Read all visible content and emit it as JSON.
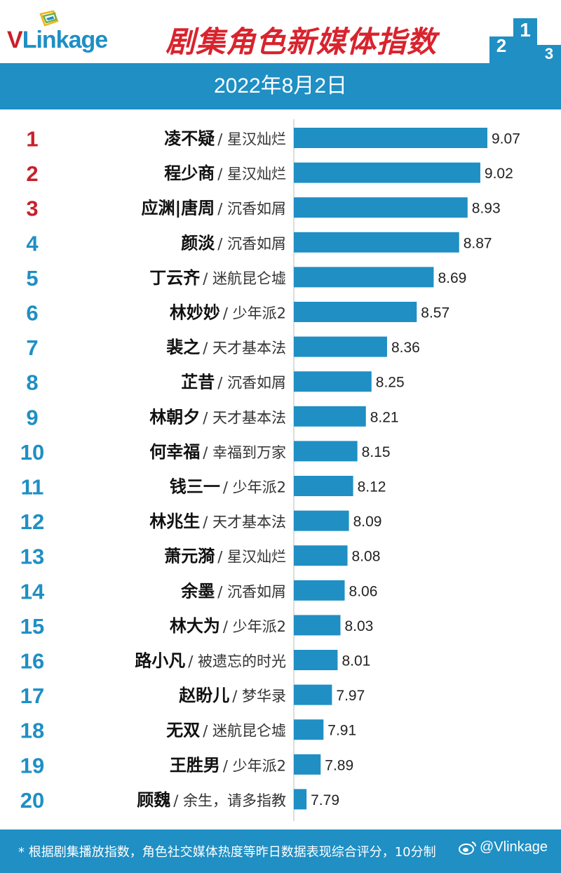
{
  "header": {
    "logo_v": "V",
    "logo_rest": "Linkage",
    "title": "剧集角色新媒体指数",
    "podium_labels": [
      "2",
      "1",
      "3"
    ]
  },
  "date": "2022年8月2日",
  "colors": {
    "brand_blue": "#1f8fc4",
    "bar_blue": "#1f8fc4",
    "rank_red": "#c8202a",
    "title_red": "#d9232d"
  },
  "chart_data": {
    "type": "bar",
    "orientation": "horizontal",
    "ranks": [
      "1",
      "2",
      "3",
      "4",
      "5",
      "6",
      "7",
      "8",
      "9",
      "10",
      "11",
      "12",
      "13",
      "14",
      "15",
      "16",
      "17",
      "18",
      "19",
      "20"
    ],
    "characters": [
      "凌不疑",
      "程少商",
      "应渊|唐周",
      "颜淡",
      "丁云齐",
      "林妙妙",
      "裴之",
      "芷昔",
      "林朝夕",
      "何幸福",
      "钱三一",
      "林兆生",
      "萧元漪",
      "余墨",
      "林大为",
      "路小凡",
      "赵盼儿",
      "无双",
      "王胜男",
      "顾魏"
    ],
    "shows": [
      "/ 星汉灿烂",
      "/ 星汉灿烂",
      "/ 沉香如屑",
      "/ 沉香如屑",
      "/ 迷航昆仑墟",
      "/ 少年派2",
      "/ 天才基本法",
      "/ 沉香如屑",
      "/ 天才基本法",
      "/ 幸福到万家",
      "/ 少年派2",
      "/ 天才基本法",
      "/ 星汉灿烂",
      "/ 沉香如屑",
      "/ 少年派2",
      "/ 被遗忘的时光",
      "/ 梦华录",
      "/ 迷航昆仑墟",
      "/ 少年派2",
      "/ 余生，请多指教"
    ],
    "values": [
      9.07,
      9.02,
      8.93,
      8.87,
      8.69,
      8.57,
      8.36,
      8.25,
      8.21,
      8.15,
      8.12,
      8.09,
      8.08,
      8.06,
      8.03,
      8.01,
      7.97,
      7.91,
      7.89,
      7.79
    ],
    "value_labels": [
      "9.07",
      "9.02",
      "8.93",
      "8.87",
      "8.69",
      "8.57",
      "8.36",
      "8.25",
      "8.21",
      "8.15",
      "8.12",
      "8.09",
      "8.08",
      "8.06",
      "8.03",
      "8.01",
      "7.97",
      "7.91",
      "7.89",
      "7.79"
    ],
    "top_ranks_red": 3
  },
  "footer": {
    "note": "* 根据剧集播放指数，角色社交媒体热度等昨日数据表现综合评分，10分制",
    "watermark": "@Vlinkage"
  }
}
